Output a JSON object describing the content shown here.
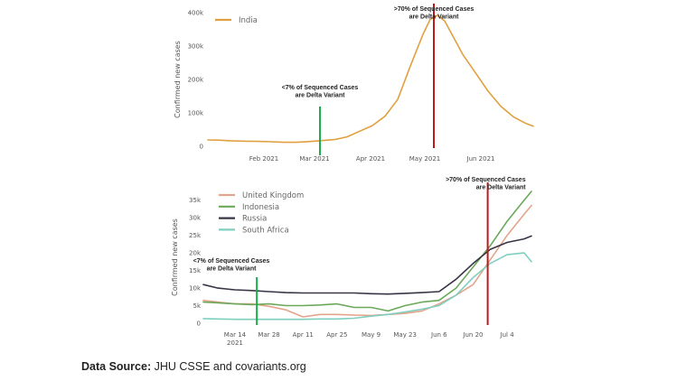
{
  "source": {
    "label": "Data Source:",
    "main": "JHU CSSE",
    "connector": "and",
    "secondary": "covariants.org"
  },
  "chart_data": [
    {
      "type": "line",
      "ylabel": "Confirmed new cases",
      "ylim": [
        0,
        400000
      ],
      "yticks": [
        0,
        100000,
        200000,
        300000,
        400000
      ],
      "ytick_labels": [
        "0",
        "100k",
        "200k",
        "300k",
        "400k"
      ],
      "xlim": [
        "2021-01-01",
        "2021-06-30"
      ],
      "xticks": [
        "2021-02-01",
        "2021-03-01",
        "2021-04-01",
        "2021-05-01",
        "2021-06-01"
      ],
      "xtick_labels": [
        "Feb 2021",
        "Mar 2021",
        "Apr 2021",
        "May 2021",
        "Jun 2021"
      ],
      "legend_position": "top-left",
      "series": [
        {
          "name": "India",
          "color": "#e0a040",
          "x": [
            "2021-01-01",
            "2021-01-08",
            "2021-01-15",
            "2021-01-22",
            "2021-01-29",
            "2021-02-05",
            "2021-02-12",
            "2021-02-19",
            "2021-02-26",
            "2021-03-05",
            "2021-03-12",
            "2021-03-19",
            "2021-03-26",
            "2021-04-02",
            "2021-04-09",
            "2021-04-16",
            "2021-04-23",
            "2021-04-30",
            "2021-05-04",
            "2021-05-08",
            "2021-05-12",
            "2021-05-16",
            "2021-05-22",
            "2021-05-29",
            "2021-06-05",
            "2021-06-12",
            "2021-06-19",
            "2021-06-26",
            "2021-06-30"
          ],
          "y": [
            19000,
            18000,
            16000,
            15000,
            14500,
            13500,
            12000,
            12000,
            14000,
            17000,
            20000,
            28000,
            45000,
            62000,
            90000,
            140000,
            240000,
            335000,
            380000,
            392000,
            375000,
            335000,
            275000,
            220000,
            165000,
            120000,
            88000,
            68000,
            60000
          ]
        }
      ],
      "annotations": [
        {
          "text": [
            "<7% of Sequenced Cases",
            "are Delta Variant"
          ],
          "x": "2021-03-04",
          "color": "#1eaa4e"
        },
        {
          "text": [
            ">70% of Sequenced Cases",
            "are Delta Variant"
          ],
          "x": "2021-05-06",
          "color": "#c0181d"
        }
      ]
    },
    {
      "type": "line",
      "ylabel": "Confirmed new cases",
      "ylim": [
        0,
        37500
      ],
      "yticks": [
        0,
        5000,
        10000,
        15000,
        20000,
        25000,
        30000,
        35000
      ],
      "ytick_labels": [
        "0",
        "5k",
        "10k",
        "15k",
        "20k",
        "25k",
        "30k",
        "35k"
      ],
      "xlim": [
        "2021-03-01",
        "2021-07-14"
      ],
      "xticks": [
        "2021-03-14",
        "2021-03-28",
        "2021-04-11",
        "2021-04-25",
        "2021-05-09",
        "2021-05-23",
        "2021-06-06",
        "2021-06-20",
        "2021-07-04"
      ],
      "xtick_labels": [
        "Mar 14",
        "Mar 28",
        "Apr 11",
        "Apr 25",
        "May 9",
        "May 23",
        "Jun 6",
        "Jun 20",
        "Jul 4"
      ],
      "xtick_year": "2021",
      "legend_position": "top-left",
      "series": [
        {
          "name": "United Kingdom",
          "color": "#e2a48c",
          "x": [
            "2021-03-01",
            "2021-03-07",
            "2021-03-14",
            "2021-03-21",
            "2021-03-28",
            "2021-04-04",
            "2021-04-11",
            "2021-04-18",
            "2021-04-25",
            "2021-05-02",
            "2021-05-09",
            "2021-05-16",
            "2021-05-23",
            "2021-05-30",
            "2021-06-06",
            "2021-06-13",
            "2021-06-20",
            "2021-06-27",
            "2021-07-04",
            "2021-07-11",
            "2021-07-14"
          ],
          "y": [
            6500,
            6000,
            5500,
            5500,
            4800,
            3800,
            1800,
            2500,
            2500,
            2300,
            2200,
            2500,
            2800,
            3500,
            5500,
            8000,
            11000,
            18000,
            25000,
            31000,
            33500
          ]
        },
        {
          "name": "Indonesia",
          "color": "#6ba85a",
          "x": [
            "2021-03-01",
            "2021-03-07",
            "2021-03-14",
            "2021-03-21",
            "2021-03-28",
            "2021-04-04",
            "2021-04-11",
            "2021-04-18",
            "2021-04-25",
            "2021-05-02",
            "2021-05-09",
            "2021-05-16",
            "2021-05-23",
            "2021-05-30",
            "2021-06-06",
            "2021-06-13",
            "2021-06-20",
            "2021-06-27",
            "2021-07-04",
            "2021-07-11",
            "2021-07-14"
          ],
          "y": [
            6000,
            5800,
            5500,
            5300,
            5500,
            5000,
            5000,
            5200,
            5500,
            4500,
            4500,
            3500,
            5000,
            6000,
            6500,
            10000,
            16000,
            22000,
            29000,
            35000,
            37500
          ]
        },
        {
          "name": "Russia",
          "color": "#3a3545",
          "x": [
            "2021-03-01",
            "2021-03-07",
            "2021-03-14",
            "2021-03-21",
            "2021-03-28",
            "2021-04-04",
            "2021-04-11",
            "2021-04-18",
            "2021-04-25",
            "2021-05-02",
            "2021-05-09",
            "2021-05-16",
            "2021-05-23",
            "2021-05-30",
            "2021-06-06",
            "2021-06-13",
            "2021-06-20",
            "2021-06-27",
            "2021-07-04",
            "2021-07-11",
            "2021-07-14"
          ],
          "y": [
            11000,
            10000,
            9500,
            9300,
            9000,
            8700,
            8600,
            8600,
            8600,
            8600,
            8400,
            8300,
            8500,
            8700,
            9000,
            12500,
            17000,
            21000,
            23000,
            24000,
            24800
          ]
        },
        {
          "name": "South Africa",
          "color": "#7fcfbf",
          "x": [
            "2021-03-01",
            "2021-03-07",
            "2021-03-14",
            "2021-03-21",
            "2021-03-28",
            "2021-04-04",
            "2021-04-11",
            "2021-04-18",
            "2021-04-25",
            "2021-05-02",
            "2021-05-09",
            "2021-05-16",
            "2021-05-23",
            "2021-05-30",
            "2021-06-06",
            "2021-06-13",
            "2021-06-20",
            "2021-06-27",
            "2021-07-04",
            "2021-07-11",
            "2021-07-14"
          ],
          "y": [
            1300,
            1200,
            1100,
            1100,
            1100,
            1100,
            1100,
            1200,
            1200,
            1400,
            2000,
            2500,
            3200,
            4000,
            5000,
            8000,
            13000,
            17000,
            19500,
            20000,
            17500
          ]
        }
      ],
      "annotations": [
        {
          "text": [
            "<7% of Sequenced Cases",
            "are Delta Variant"
          ],
          "x": "2021-03-23",
          "color": "#1eaa4e"
        },
        {
          "text": [
            ">70% of Sequenced Cases",
            "are Delta Variant"
          ],
          "x": "2021-06-26",
          "color": "#c0181d"
        }
      ]
    }
  ]
}
